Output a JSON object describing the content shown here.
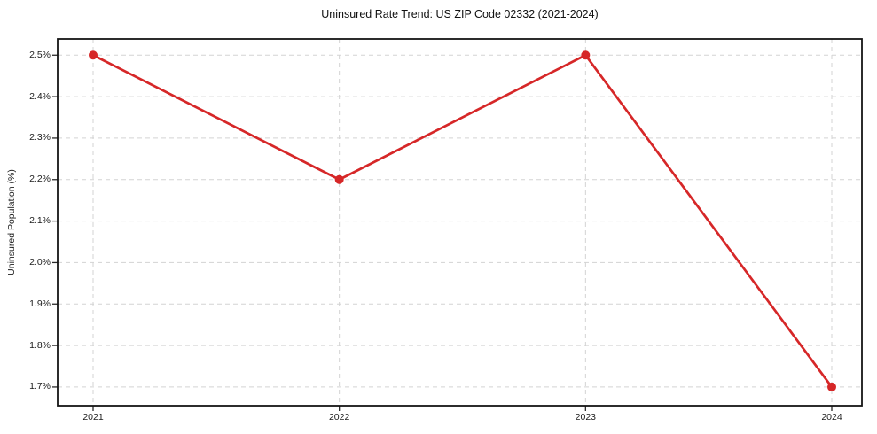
{
  "chart_data": {
    "type": "line",
    "title": "Uninsured Rate Trend: US ZIP Code 02332 (2021-2024)",
    "xlabel": "",
    "ylabel": "Uninsured Population (%)",
    "categories": [
      "2021",
      "2022",
      "2023",
      "2024"
    ],
    "series": [
      {
        "name": "Uninsured Population (%)",
        "values": [
          2.5,
          2.2,
          2.5,
          1.7
        ]
      }
    ],
    "yticks": [
      1.7,
      1.8,
      1.9,
      2.0,
      2.1,
      2.2,
      2.3,
      2.4,
      2.5
    ],
    "ytick_labels": [
      "1.7%",
      "1.8%",
      "1.9%",
      "2.0%",
      "2.1%",
      "2.2%",
      "2.3%",
      "2.4%",
      "2.5%"
    ],
    "xtick_labels": [
      "2021",
      "2022",
      "2023",
      "2024"
    ],
    "ylim": [
      1.655,
      2.539
    ],
    "grid": true,
    "legend": false,
    "line_color": "#d62728",
    "marker_color": "#d62728",
    "grid_color": "#d3d3d3",
    "background_color": "#ffffff"
  }
}
